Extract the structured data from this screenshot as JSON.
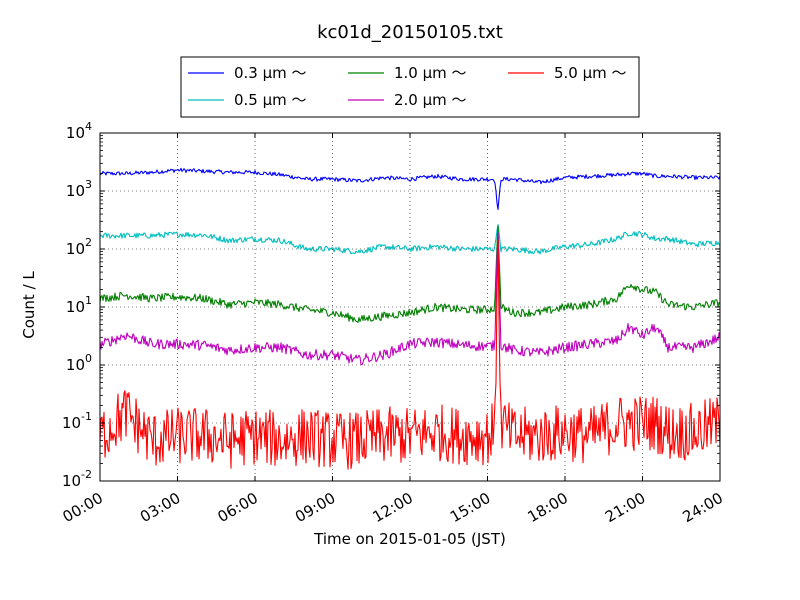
{
  "chart_data": {
    "type": "line",
    "title": "kc01d_20150105.txt",
    "xlabel": "Time on 2015-01-05 (JST)",
    "ylabel": "Count / L",
    "yscale": "log",
    "xlim": [
      "00:00",
      "24:00"
    ],
    "ylim": [
      0.01,
      10000
    ],
    "grid": true,
    "legend_placement": "top-center, above plot",
    "x_tick_labels": [
      "00:00",
      "03:00",
      "06:00",
      "09:00",
      "12:00",
      "15:00",
      "18:00",
      "21:00",
      "24:00"
    ],
    "y_tick_labels": [
      {
        "base": "10",
        "exp": "-2"
      },
      {
        "base": "10",
        "exp": "-1"
      },
      {
        "base": "10",
        "exp": "0"
      },
      {
        "base": "10",
        "exp": "1"
      },
      {
        "base": "10",
        "exp": "2"
      },
      {
        "base": "10",
        "exp": "3"
      },
      {
        "base": "10",
        "exp": "4"
      }
    ],
    "x_hours": [
      0,
      1,
      2,
      3,
      4,
      5,
      6,
      7,
      8,
      9,
      10,
      11,
      12,
      13,
      14,
      15,
      15.5,
      16,
      17,
      18,
      19,
      20,
      20.5,
      21,
      21.5,
      22,
      23,
      24
    ],
    "series": [
      {
        "name": "0.3 μm ～",
        "color": "#0000ff",
        "values": [
          2000,
          2000,
          2100,
          2300,
          2200,
          2100,
          2100,
          1900,
          1600,
          1600,
          1500,
          1700,
          1600,
          1800,
          1600,
          1600,
          1600,
          1600,
          1400,
          1700,
          1800,
          1900,
          2000,
          2000,
          1800,
          1800,
          1700,
          1700
        ]
      },
      {
        "name": "0.5 μm ～",
        "color": "#00bfbf",
        "values": [
          170,
          170,
          170,
          180,
          175,
          140,
          150,
          140,
          100,
          100,
          90,
          110,
          100,
          110,
          100,
          100,
          100,
          100,
          90,
          110,
          120,
          150,
          190,
          180,
          150,
          150,
          120,
          130
        ]
      },
      {
        "name": "1.0 μm ～",
        "color": "#008000",
        "values": [
          14,
          16,
          14,
          15,
          14,
          11,
          12,
          11,
          9,
          8,
          6,
          7,
          8,
          10,
          9,
          9,
          10,
          8,
          8,
          10,
          11,
          14,
          25,
          20,
          18,
          11,
          10,
          12
        ]
      },
      {
        "name": "2.0 μm ～",
        "color": "#bf00bf",
        "values": [
          2.2,
          3.3,
          2.3,
          2.3,
          2.2,
          1.8,
          2.0,
          2.0,
          1.5,
          1.5,
          1.2,
          1.5,
          2.3,
          2.5,
          2.2,
          2.1,
          2.2,
          1.8,
          1.6,
          2.0,
          2.3,
          2.6,
          4.5,
          3.2,
          4.5,
          2.0,
          2.0,
          3.0
        ]
      },
      {
        "name": "5.0 μm ～",
        "color": "#ff0000",
        "values": [
          0.06,
          0.15,
          0.05,
          0.06,
          0.06,
          0.05,
          0.06,
          0.05,
          0.06,
          0.05,
          0.05,
          0.06,
          0.06,
          0.07,
          0.06,
          0.06,
          0.1,
          0.06,
          0.06,
          0.07,
          0.06,
          0.1,
          0.1,
          0.1,
          0.1,
          0.07,
          0.07,
          0.1
        ]
      }
    ],
    "spike": {
      "x_hour": 15.4,
      "values": [
        450,
        280,
        300,
        250,
        250
      ]
    }
  }
}
